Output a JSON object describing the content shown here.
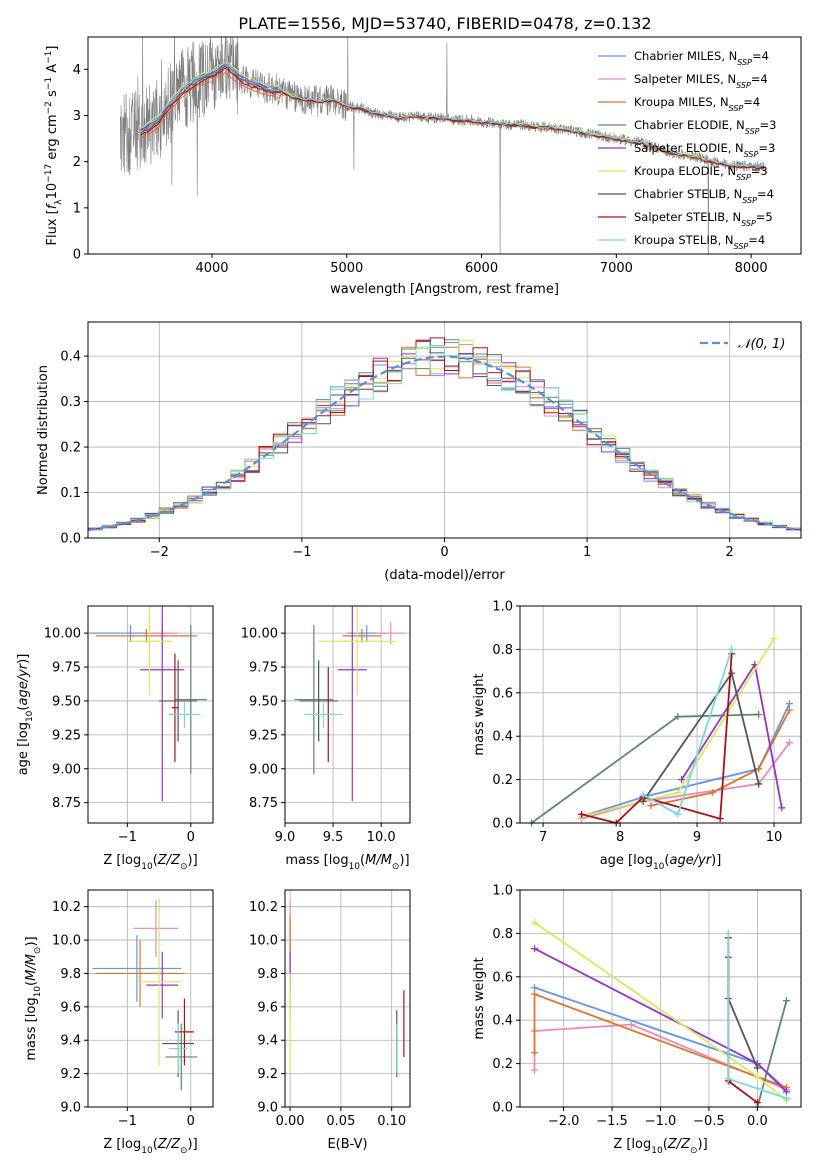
{
  "figure_title": "PLATE=1556, MJD=53740, FIBERID=0478, z=0.132",
  "models": [
    {
      "name": "Chabrier MILES",
      "nssp": "4",
      "color": "#6495ed"
    },
    {
      "name": "Salpeter MILES",
      "nssp": "4",
      "color": "#e98cbb"
    },
    {
      "name": "Kroupa MILES",
      "nssp": "4",
      "color": "#e0742e"
    },
    {
      "name": "Chabrier ELODIE",
      "nssp": "3",
      "color": "#5a8a6a"
    },
    {
      "name": "Salpeter ELODIE",
      "nssp": "3",
      "color": "#9932cc"
    },
    {
      "name": "Kroupa ELODIE",
      "nssp": "3",
      "color": "#d4ec5a"
    },
    {
      "name": "Chabrier STELIB",
      "nssp": "4",
      "color": "#555555"
    },
    {
      "name": "Salpeter STELIB",
      "nssp": "5",
      "color": "#b01018"
    },
    {
      "name": "Kroupa STELIB",
      "nssp": "4",
      "color": "#7ad8dc"
    }
  ],
  "chart_data": [
    {
      "id": "spectrum",
      "type": "line",
      "xlabel": "wavelength [Angstrom, rest frame]",
      "ylabel": "Flux [f_λ 10^-17 erg cm^-2 s^-1 A^-1]",
      "xlim": [
        3080,
        8370
      ],
      "ylim": [
        0,
        4.7
      ],
      "xticks": [
        4000,
        5000,
        6000,
        7000,
        8000
      ],
      "yticks": [
        0,
        1,
        2,
        3,
        4
      ],
      "grid": false,
      "legend": "upper right",
      "data_color": "#808080",
      "observed": {
        "x": [
          3320,
          3400,
          3500,
          3600,
          3700,
          3800,
          3900,
          4000,
          4100,
          4200,
          4300,
          4400,
          4500,
          4600,
          4700,
          4800,
          4900,
          5000,
          5100,
          5200,
          5300,
          5400,
          5500,
          5600,
          5700,
          5800,
          5900,
          6000,
          6100,
          6200,
          6300,
          6400,
          6500,
          6600,
          6700,
          6800,
          6900,
          7000,
          7100,
          7200,
          7300,
          7400,
          7500,
          7600,
          7700,
          7800,
          7900,
          8000,
          8100
        ],
        "y": [
          2.55,
          2.6,
          2.7,
          2.9,
          3.3,
          3.6,
          3.8,
          3.9,
          4.1,
          3.85,
          3.7,
          3.6,
          3.55,
          3.4,
          3.35,
          3.3,
          3.35,
          3.2,
          3.15,
          3.05,
          3.0,
          2.95,
          3.0,
          2.95,
          2.95,
          2.9,
          2.9,
          2.85,
          2.85,
          2.8,
          2.8,
          2.75,
          2.75,
          2.7,
          2.65,
          2.6,
          2.55,
          2.5,
          2.45,
          2.4,
          2.3,
          2.2,
          2.15,
          2.1,
          2.0,
          1.95,
          1.9,
          1.9,
          1.88
        ]
      },
      "model_offsets": [
        0.0,
        -0.03,
        -0.15,
        0.02,
        0.04,
        0.08,
        -0.04,
        -0.08,
        0.05
      ]
    },
    {
      "id": "residuals",
      "type": "step",
      "xlabel": "(data-model)/error",
      "ylabel": "Normed distribution",
      "xlim": [
        -2.5,
        2.5
      ],
      "ylim": [
        0,
        0.475
      ],
      "xticks": [
        -2,
        -1,
        0,
        1,
        2
      ],
      "yticks": [
        0.0,
        0.1,
        0.2,
        0.3,
        0.4
      ],
      "grid": true,
      "legend": "upper right",
      "reference_label": "𝒩(0, 1)",
      "reference_color": "#5b8ed6"
    },
    {
      "id": "age-vs-Z",
      "type": "errorbar",
      "xlabel": "Z [log10(Z/Z⊙)]",
      "ylabel": "age  [log10(age/yr)]",
      "xlim": [
        -1.62,
        0.35
      ],
      "ylim": [
        8.6,
        10.2
      ],
      "xticks": [
        -1,
        0
      ],
      "yticks": [
        8.75,
        9.0,
        9.25,
        9.5,
        9.75,
        10.0
      ],
      "grid": true,
      "points": [
        {
          "model": 0,
          "x": -0.95,
          "xerr": 0.65,
          "y": 10.0,
          "yerr": 0.06
        },
        {
          "model": 1,
          "x": -0.45,
          "xerr": 0.25,
          "y": 10.0,
          "yerr": 0.08
        },
        {
          "model": 2,
          "x": -0.7,
          "xerr": 0.8,
          "y": 9.98,
          "yerr": 0.05
        },
        {
          "model": 3,
          "x": 0.0,
          "xerr": 0.25,
          "y": 9.51,
          "yerr": 0.55
        },
        {
          "model": 4,
          "x": -0.45,
          "xerr": 0.35,
          "y": 9.73,
          "yerr": 0.97
        },
        {
          "model": 5,
          "x": -0.65,
          "xerr": 0.35,
          "y": 9.94,
          "yerr": 0.4
        },
        {
          "model": 6,
          "x": -0.2,
          "xerr": 0.3,
          "y": 9.5,
          "yerr": 0.3
        },
        {
          "model": 7,
          "x": -0.25,
          "xerr": 0.05,
          "y": 9.45,
          "yerr": 0.4
        },
        {
          "model": 8,
          "x": -0.1,
          "xerr": 0.25,
          "y": 9.4,
          "yerr": 0.1
        }
      ]
    },
    {
      "id": "age-vs-mass",
      "type": "errorbar",
      "xlabel": "mass [log10(M/M⊙)]",
      "ylabel": "",
      "xlim": [
        9.0,
        10.3
      ],
      "ylim": [
        8.6,
        10.2
      ],
      "xticks": [
        9.0,
        9.5,
        10.0
      ],
      "yticks": [
        8.75,
        9.0,
        9.25,
        9.5,
        9.75,
        10.0
      ],
      "grid": true,
      "points": [
        {
          "model": 0,
          "x": 9.85,
          "xerr": 0.2,
          "y": 10.0,
          "yerr": 0.06
        },
        {
          "model": 1,
          "x": 10.1,
          "xerr": 0.15,
          "y": 10.0,
          "yerr": 0.08
        },
        {
          "model": 2,
          "x": 9.8,
          "xerr": 0.2,
          "y": 9.98,
          "yerr": 0.05
        },
        {
          "model": 3,
          "x": 9.3,
          "xerr": 0.2,
          "y": 9.51,
          "yerr": 0.55
        },
        {
          "model": 4,
          "x": 9.7,
          "xerr": 0.15,
          "y": 9.73,
          "yerr": 0.97
        },
        {
          "model": 5,
          "x": 9.75,
          "xerr": 0.4,
          "y": 9.94,
          "yerr": 0.4
        },
        {
          "model": 6,
          "x": 9.35,
          "xerr": 0.2,
          "y": 9.5,
          "yerr": 0.3
        },
        {
          "model": 7,
          "x": 9.45,
          "xerr": 0.03,
          "y": 9.4,
          "yerr": 0.35
        },
        {
          "model": 8,
          "x": 9.4,
          "xerr": 0.2,
          "y": 9.4,
          "yerr": 0.1
        }
      ]
    },
    {
      "id": "weight-vs-age",
      "type": "line",
      "xlabel": "age  [log10(age/yr)]",
      "ylabel": "mass weight",
      "xlim": [
        6.7,
        10.35
      ],
      "ylim": [
        0.0,
        1.0
      ],
      "xticks": [
        7,
        8,
        9,
        10
      ],
      "yticks": [
        0.0,
        0.2,
        0.4,
        0.6,
        0.8,
        1.0
      ],
      "grid": true,
      "series": [
        {
          "model": 0,
          "x": [
            7.5,
            8.3,
            9.8,
            10.2
          ],
          "y": [
            0.03,
            0.12,
            0.25,
            0.55
          ]
        },
        {
          "model": 1,
          "x": [
            7.5,
            8.3,
            9.8,
            10.2
          ],
          "y": [
            0.02,
            0.1,
            0.18,
            0.37
          ]
        },
        {
          "model": 2,
          "x": [
            8.4,
            9.2,
            9.8,
            10.2
          ],
          "y": [
            0.08,
            0.14,
            0.25,
            0.52
          ]
        },
        {
          "model": 3,
          "x": [
            6.85,
            8.75,
            9.8
          ],
          "y": [
            0.0,
            0.49,
            0.5
          ]
        },
        {
          "model": 4,
          "x": [
            8.8,
            9.75,
            10.1
          ],
          "y": [
            0.2,
            0.73,
            0.07
          ]
        },
        {
          "model": 5,
          "x": [
            7.5,
            8.75,
            10.0
          ],
          "y": [
            0.03,
            0.14,
            0.85
          ]
        },
        {
          "model": 6,
          "x": [
            8.3,
            9.45,
            9.8
          ],
          "y": [
            0.1,
            0.69,
            0.18
          ]
        },
        {
          "model": 7,
          "x": [
            7.5,
            7.95,
            8.3,
            9.3,
            9.45
          ],
          "y": [
            0.04,
            0.0,
            0.12,
            0.02,
            0.78
          ]
        },
        {
          "model": 8,
          "x": [
            8.3,
            8.75,
            9.45
          ],
          "y": [
            0.13,
            0.04,
            0.8
          ]
        }
      ]
    },
    {
      "id": "mass-vs-Z",
      "type": "errorbar",
      "xlabel": "Z [log10(Z/Z⊙)]",
      "ylabel": "mass [log10(M/M⊙)]",
      "xlim": [
        -1.62,
        0.35
      ],
      "ylim": [
        9.0,
        10.3
      ],
      "xticks": [
        -1,
        0
      ],
      "yticks": [
        9.0,
        9.2,
        9.4,
        9.6,
        9.8,
        10.0,
        10.2
      ],
      "grid": true,
      "points": [
        {
          "model": 0,
          "x": -0.85,
          "xerr": 0.7,
          "y": 9.83,
          "yerr": 0.2
        },
        {
          "model": 1,
          "x": -0.55,
          "xerr": 0.35,
          "y": 10.07,
          "yerr": 0.17
        },
        {
          "model": 2,
          "x": -0.8,
          "xerr": 0.7,
          "y": 9.8,
          "yerr": 0.2
        },
        {
          "model": 3,
          "x": -0.15,
          "xerr": 0.25,
          "y": 9.3,
          "yerr": 0.2
        },
        {
          "model": 4,
          "x": -0.45,
          "xerr": 0.25,
          "y": 9.73,
          "yerr": 0.2
        },
        {
          "model": 5,
          "x": -0.5,
          "xerr": 0.35,
          "y": 9.75,
          "yerr": 0.5
        },
        {
          "model": 6,
          "x": -0.2,
          "xerr": 0.25,
          "y": 9.38,
          "yerr": 0.2
        },
        {
          "model": 7,
          "x": -0.1,
          "xerr": 0.15,
          "y": 9.45,
          "yerr": 0.2
        },
        {
          "model": 8,
          "x": -0.2,
          "xerr": 0.15,
          "y": 9.35,
          "yerr": 0.15
        }
      ]
    },
    {
      "id": "mass-vs-ebv",
      "type": "errorbar",
      "xlabel": "E(B-V)",
      "ylabel": "",
      "xlim": [
        -0.005,
        0.118
      ],
      "ylim": [
        9.0,
        10.3
      ],
      "xticks": [
        0.0,
        0.05,
        0.1
      ],
      "xtick_labels": [
        "0.00",
        "0.05",
        "0.10"
      ],
      "yticks": [
        9.0,
        9.2,
        9.4,
        9.6,
        9.8,
        10.0,
        10.2
      ],
      "grid": true,
      "points": [
        {
          "model": 0,
          "x": 0.0,
          "xerr": 0,
          "y": 9.9,
          "yerr": 0.2
        },
        {
          "model": 1,
          "x": 0.0,
          "xerr": 0,
          "y": 10.07,
          "yerr": 0.17
        },
        {
          "model": 2,
          "x": 0.0,
          "xerr": 0,
          "y": 9.95,
          "yerr": 0.2
        },
        {
          "model": 3,
          "x": 0.105,
          "xerr": 0,
          "y": 9.35,
          "yerr": 0.15
        },
        {
          "model": 4,
          "x": 0.0,
          "xerr": 0,
          "y": 9.73,
          "yerr": 0.2
        },
        {
          "model": 5,
          "x": 0.0,
          "xerr": 0,
          "y": 9.5,
          "yerr": 0.3
        },
        {
          "model": 6,
          "x": 0.105,
          "xerr": 0,
          "y": 9.38,
          "yerr": 0.2
        },
        {
          "model": 7,
          "x": 0.112,
          "xerr": 0,
          "y": 9.5,
          "yerr": 0.2
        },
        {
          "model": 8,
          "x": 0.105,
          "xerr": 0,
          "y": 9.35,
          "yerr": 0.15
        }
      ]
    },
    {
      "id": "weight-vs-Z",
      "type": "line",
      "xlabel": "Z [log10(Z/Z⊙)]",
      "ylabel": "mass weight",
      "xlim": [
        -2.45,
        0.45
      ],
      "ylim": [
        0.0,
        1.0
      ],
      "xticks": [
        -2.0,
        -1.5,
        -1.0,
        -0.5,
        0.0
      ],
      "yticks": [
        0.0,
        0.2,
        0.4,
        0.6,
        0.8,
        1.0
      ],
      "grid": true,
      "series": [
        {
          "model": 0,
          "x": [
            -2.3,
            0.0,
            0.3
          ],
          "y": [
            0.55,
            0.2,
            0.08
          ]
        },
        {
          "model": 1,
          "x": [
            -2.3,
            -2.3,
            -1.3,
            0.3
          ],
          "y": [
            0.17,
            0.35,
            0.38,
            0.08
          ]
        },
        {
          "model": 2,
          "x": [
            -2.3,
            -2.3,
            0.3
          ],
          "y": [
            0.25,
            0.52,
            0.09
          ]
        },
        {
          "model": 3,
          "x": [
            0.0,
            0.3
          ],
          "y": [
            0.0,
            0.49
          ]
        },
        {
          "model": 4,
          "x": [
            -2.3,
            0.0,
            0.3
          ],
          "y": [
            0.73,
            0.2,
            0.07
          ]
        },
        {
          "model": 5,
          "x": [
            -2.3,
            0.0,
            0.3
          ],
          "y": [
            0.85,
            0.14,
            0.03
          ]
        },
        {
          "model": 6,
          "x": [
            -0.3,
            -0.3,
            0.0
          ],
          "y": [
            0.69,
            0.5,
            0.18
          ]
        },
        {
          "model": 7,
          "x": [
            -0.3,
            -0.3,
            0.0
          ],
          "y": [
            0.78,
            0.12,
            0.02
          ]
        },
        {
          "model": 8,
          "x": [
            -0.3,
            -0.3,
            0.3
          ],
          "y": [
            0.8,
            0.13,
            0.04
          ]
        }
      ]
    }
  ]
}
